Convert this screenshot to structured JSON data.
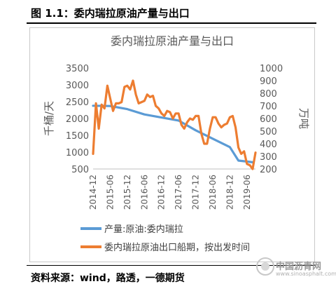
{
  "figure_title": "图 1.1：委内瑞拉原油产量与出口",
  "source": "资料来源：wind，路透，一德期货",
  "watermark": {
    "name": "中国沥青网",
    "url": "www.sinoasphalt.com"
  },
  "chart_data": {
    "type": "line",
    "title": "委内瑞拉原油产量与出口",
    "ylabel_left": "千桶/天",
    "ylabel_right": "万吨",
    "ylim_left": [
      500,
      3500
    ],
    "yticks_left": [
      "3500",
      "3000",
      "2500",
      "2000",
      "1500",
      "1000",
      "500"
    ],
    "ylim_right": [
      200,
      1000
    ],
    "yticks_right": [
      "1000",
      "900",
      "800",
      "700",
      "600",
      "500",
      "400",
      "300",
      "200"
    ],
    "x_tick_labels": [
      "2014-12",
      "2015-06",
      "2015-12",
      "2016-06",
      "2016-12",
      "2017-06",
      "2017-12",
      "2018-06",
      "2018-12",
      "2019-06"
    ],
    "x_range": [
      0,
      57
    ],
    "legend_position": "bottom",
    "series": [
      {
        "name": "产量:原油:委内瑞拉",
        "axis": "left",
        "color": "#5b9bd5",
        "x": [
          0,
          6,
          12,
          18,
          24,
          30,
          36,
          42,
          48,
          51,
          54,
          56
        ],
        "values": [
          2380,
          2370,
          2280,
          2120,
          2030,
          1940,
          1650,
          1400,
          1150,
          750,
          720,
          700
        ]
      },
      {
        "name": "委内瑞拉原油出口船期，按出发时间",
        "axis": "right",
        "color": "#ed7d31",
        "x": [
          0,
          1,
          2,
          3,
          4,
          5,
          6,
          7,
          8,
          9,
          10,
          11,
          12,
          13,
          14,
          15,
          16,
          17,
          18,
          19,
          20,
          21,
          22,
          23,
          24,
          25,
          26,
          27,
          28,
          29,
          30,
          31,
          32,
          33,
          34,
          35,
          36,
          37,
          38,
          39,
          40,
          41,
          42,
          43,
          44,
          45,
          46,
          47,
          48,
          49,
          50,
          51,
          52,
          53,
          54,
          55,
          56,
          57
        ],
        "values": [
          320,
          720,
          520,
          710,
          680,
          860,
          760,
          660,
          720,
          720,
          730,
          850,
          860,
          830,
          900,
          790,
          720,
          730,
          740,
          790,
          770,
          780,
          700,
          680,
          640,
          620,
          660,
          650,
          600,
          640,
          640,
          550,
          520,
          570,
          600,
          590,
          620,
          620,
          480,
          400,
          400,
          520,
          610,
          610,
          560,
          530,
          550,
          560,
          610,
          620,
          530,
          370,
          320,
          340,
          240,
          230,
          200,
          330
        ]
      }
    ]
  }
}
